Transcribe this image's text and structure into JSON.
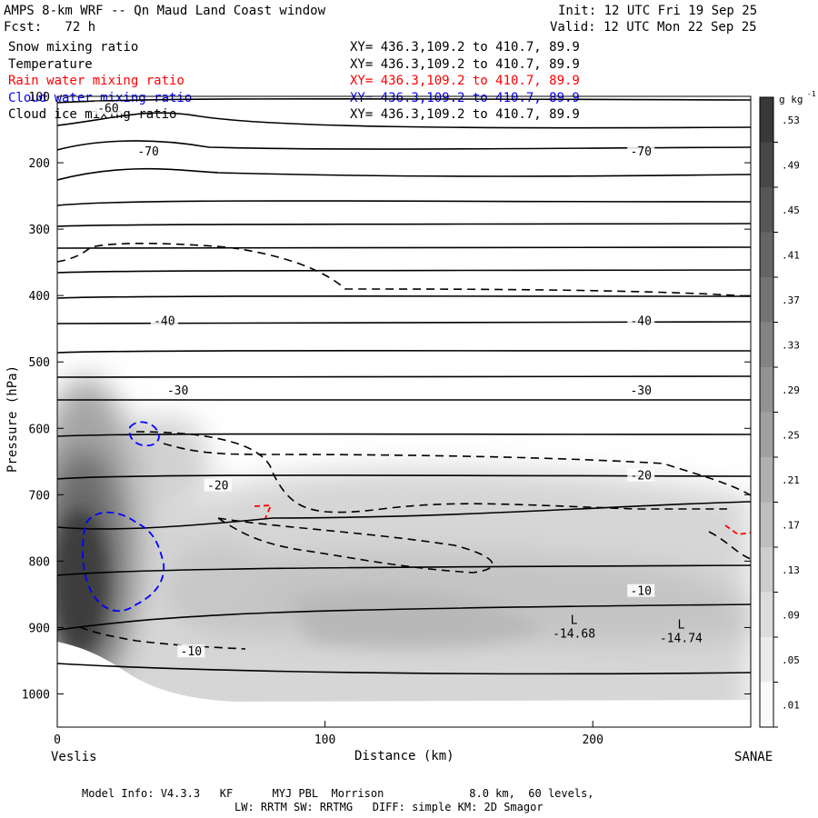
{
  "header": {
    "title": "AMPS 8-km WRF -- Qn Maud Land Coast window",
    "init": "Init: 12 UTC Fri 19 Sep 25",
    "fcst": "Fcst:   72 h",
    "valid": "Valid: 12 UTC Mon 22 Sep 25"
  },
  "fields": [
    {
      "name": "Snow mixing ratio",
      "xy": "XY= 436.3,109.2 to 410.7, 89.9",
      "color": "#000000"
    },
    {
      "name": "Temperature",
      "xy": "XY= 436.3,109.2 to 410.7, 89.9",
      "color": "#000000"
    },
    {
      "name": "Rain water mixing ratio",
      "xy": "XY= 436.3,109.2 to 410.7, 89.9",
      "color": "#ff0000"
    },
    {
      "name": "Cloud water mixing ratio",
      "xy": "XY= 436.3,109.2 to 410.7, 89.9",
      "color": "#0000ff"
    },
    {
      "name": "Cloud ice mixing ratio",
      "xy": "XY= 436.3,109.2 to 410.7, 89.9",
      "color": "#000000"
    }
  ],
  "chart_data": {
    "type": "cross-section contour",
    "xlabel": "Distance (km)",
    "ylabel": "Pressure (hPa)",
    "xlim": [
      0,
      259
    ],
    "ylim": [
      1050,
      100
    ],
    "x_ticks": [
      0,
      100,
      200
    ],
    "y_ticks": [
      100,
      200,
      300,
      400,
      500,
      600,
      700,
      800,
      900,
      1000
    ],
    "x_start_label": "Veslis",
    "x_end_label": "SANAE",
    "colorbar": {
      "unit": "g kg",
      "unit_sup": "-1",
      "ticks": [
        ".53",
        ".49",
        ".45",
        ".41",
        ".37",
        ".33",
        ".29",
        ".25",
        ".21",
        ".17",
        ".13",
        ".09",
        ".05",
        ".01"
      ]
    },
    "isotherm_labels": [
      {
        "text": "-70",
        "x": 34,
        "p": 185
      },
      {
        "text": "-70",
        "x": 218,
        "p": 185
      },
      {
        "text": "-60",
        "x": 19,
        "p": 120
      },
      {
        "text": "-40",
        "x": 40,
        "p": 440
      },
      {
        "text": "-40",
        "x": 218,
        "p": 440
      },
      {
        "text": "-30",
        "x": 45,
        "p": 545
      },
      {
        "text": "-30",
        "x": 218,
        "p": 545
      },
      {
        "text": "-20",
        "x": 60,
        "p": 688
      },
      {
        "text": "-20",
        "x": 218,
        "p": 673
      },
      {
        "text": "-10",
        "x": 50,
        "p": 938
      },
      {
        "text": "-10",
        "x": 218,
        "p": 847
      }
    ],
    "lows": [
      {
        "marker": "L",
        "value": "-14.68",
        "x": 193,
        "p": 908
      },
      {
        "marker": "L",
        "value": "-14.74",
        "x": 233,
        "p": 915
      }
    ]
  },
  "footer": {
    "line1": "Model Info: V4.3.3   KF      MYJ PBL  Morrison             8.0 km,  60 levels,",
    "line2": "LW: RRTM SW: RRTMG   DIFF: simple KM: 2D Smagor"
  }
}
